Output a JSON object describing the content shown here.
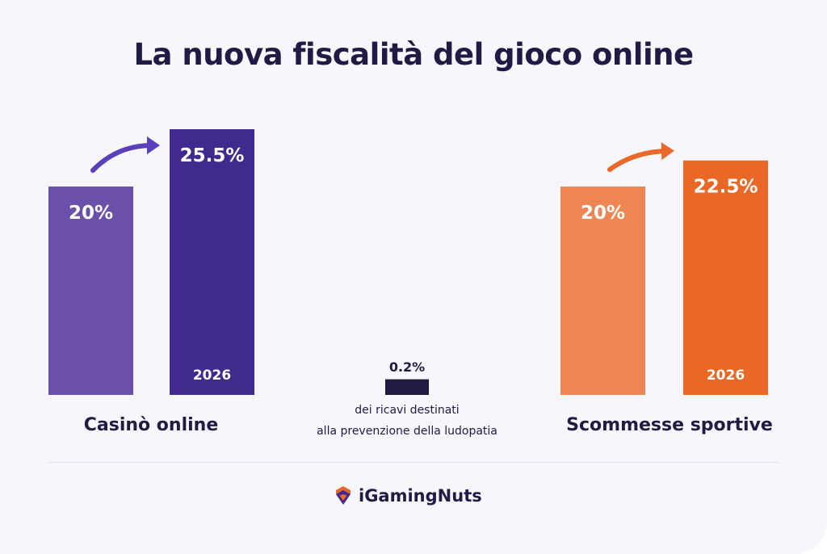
{
  "title": "La nuova fiscalità del gioco online",
  "brand": {
    "name": "iGamingNuts",
    "icon": "diamond-logo-icon"
  },
  "colors": {
    "casino_current": "#6a50aa",
    "casino_2026": "#412a8e",
    "sport_current": "#ee8653",
    "sport_2026": "#ea6826",
    "dark": "#1f1b45",
    "background": "#f7f6fc"
  },
  "chart_data": {
    "type": "bar",
    "title": "La nuova fiscalità del gioco online",
    "unit": "%",
    "groups": [
      {
        "name": "Casinò online",
        "bars": [
          {
            "value": 20,
            "label": "20%",
            "year": ""
          },
          {
            "value": 25.5,
            "label": "25.5%",
            "year": "2026"
          }
        ]
      },
      {
        "name": "",
        "bars": [
          {
            "value": 0.2,
            "label": "0.2%",
            "year": ""
          }
        ],
        "caption": [
          "dei ricavi destinati",
          "alla prevenzione della ludopatia"
        ]
      },
      {
        "name": "Scommesse sportive",
        "bars": [
          {
            "value": 20,
            "label": "20%",
            "year": ""
          },
          {
            "value": 22.5,
            "label": "22.5%",
            "year": "2026"
          }
        ]
      }
    ],
    "ylim": [
      0,
      25.5
    ],
    "grid": false,
    "legend": "none"
  }
}
